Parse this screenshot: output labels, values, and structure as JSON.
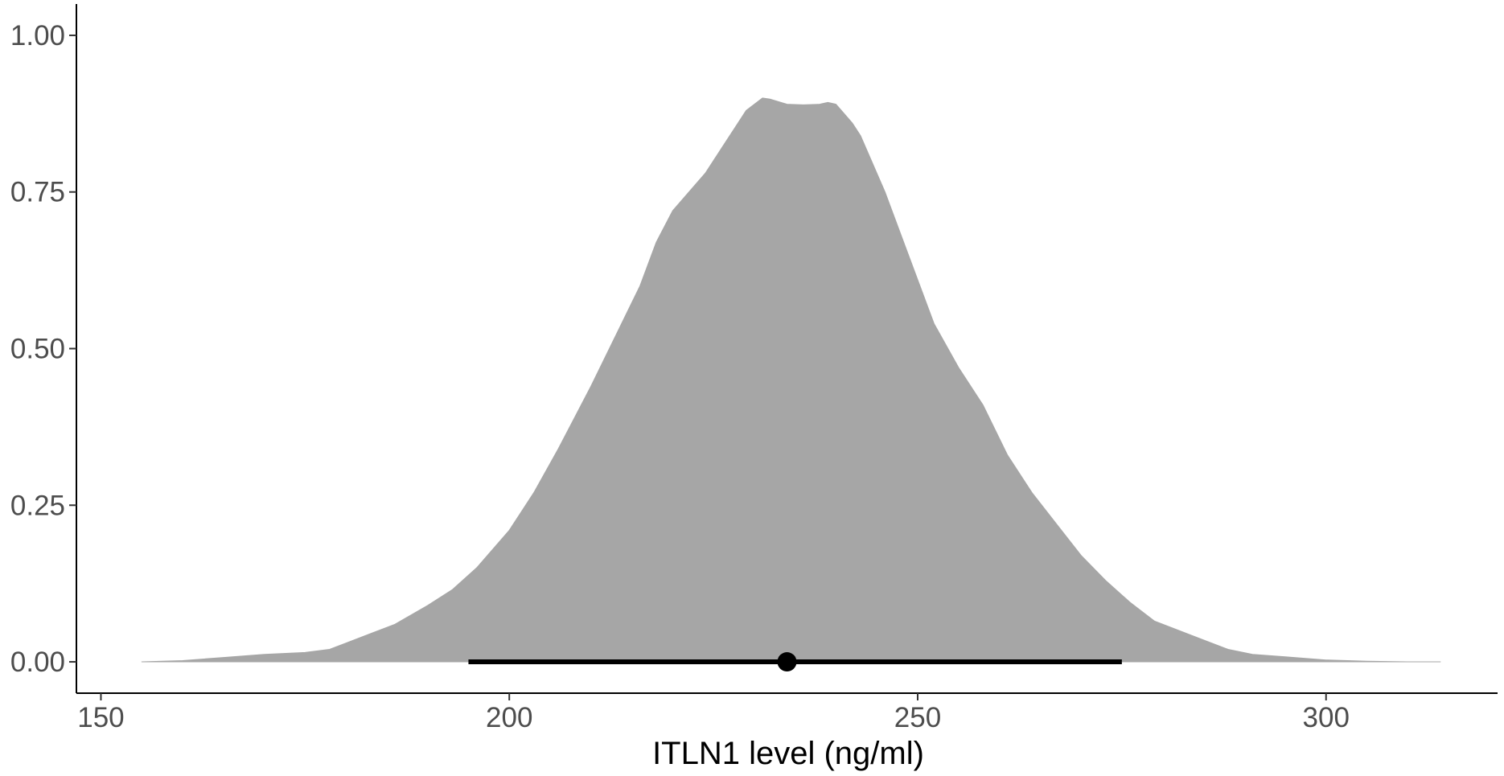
{
  "chart_data": {
    "type": "area",
    "title": "",
    "xlabel": "ITLN1 level (ng/ml)",
    "ylabel": "",
    "xlim": [
      147,
      321
    ],
    "ylim": [
      -0.05,
      1.05
    ],
    "x_ticks": [
      150,
      200,
      250,
      300
    ],
    "x_tick_labels": [
      "150",
      "200",
      "250",
      "300"
    ],
    "y_ticks": [
      0,
      0.25,
      0.5,
      0.75,
      1.0
    ],
    "y_tick_labels": [
      "0.00",
      "0.25",
      "0.50",
      "0.75",
      "1.00"
    ],
    "grid": false,
    "legend": "none",
    "fill_color": "#a6a6a6",
    "mark_color": "#000000",
    "density": {
      "x": [
        155,
        160,
        165,
        170,
        175,
        178,
        180,
        183,
        186,
        190,
        193,
        196,
        198,
        200,
        203,
        206,
        210,
        213,
        216,
        218,
        220,
        222,
        224,
        226,
        228,
        229,
        230,
        231,
        232,
        234,
        236,
        238,
        239,
        240,
        241,
        242,
        243,
        244,
        246,
        248,
        250,
        252,
        255,
        258,
        261,
        264,
        267,
        270,
        273,
        276,
        279,
        282,
        285,
        288,
        291,
        295,
        300,
        305,
        310,
        314
      ],
      "y": [
        0.0,
        0.002,
        0.007,
        0.012,
        0.015,
        0.02,
        0.03,
        0.045,
        0.06,
        0.09,
        0.115,
        0.15,
        0.18,
        0.21,
        0.27,
        0.34,
        0.44,
        0.52,
        0.6,
        0.67,
        0.72,
        0.75,
        0.78,
        0.82,
        0.86,
        0.88,
        0.89,
        0.9,
        0.898,
        0.89,
        0.889,
        0.89,
        0.893,
        0.89,
        0.875,
        0.86,
        0.84,
        0.81,
        0.75,
        0.68,
        0.61,
        0.54,
        0.47,
        0.41,
        0.33,
        0.27,
        0.22,
        0.17,
        0.13,
        0.095,
        0.065,
        0.05,
        0.035,
        0.02,
        0.012,
        0.008,
        0.003,
        0.001,
        0.0,
        0.0
      ]
    },
    "interval": {
      "low": 195,
      "high": 275,
      "y": 0
    },
    "point": {
      "x": 234,
      "y": 0
    }
  }
}
